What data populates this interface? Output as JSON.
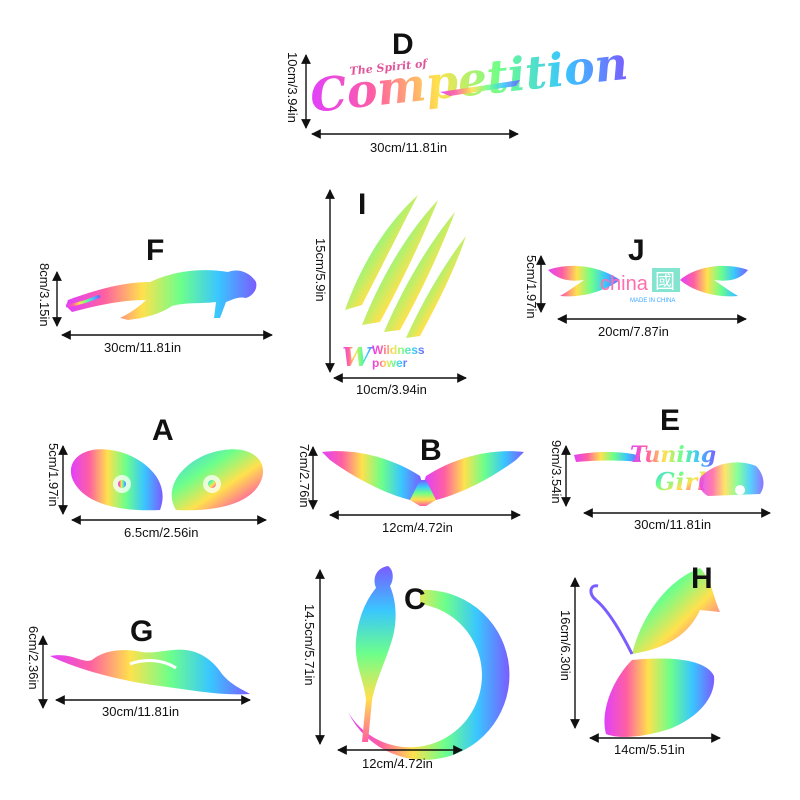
{
  "stickers": {
    "D": {
      "letter": "D",
      "width": "30cm/11.81in",
      "height": "10cm/3.94in",
      "text_main": "Competition",
      "text_small": "The Spirit of"
    },
    "F": {
      "letter": "F",
      "width": "30cm/11.81in",
      "height": "8cm/3.15in"
    },
    "I": {
      "letter": "I",
      "width": "10cm/3.94in",
      "height": "15cm/5.9in",
      "text_top": "Wildness",
      "text_bottom": "power"
    },
    "J": {
      "letter": "J",
      "width": "20cm/7.87in",
      "height": "5cm/1.97in",
      "text_main": "china",
      "text_small": "MADE IN CHINA",
      "glyph": "國"
    },
    "A": {
      "letter": "A",
      "width": "6.5cm/2.56in",
      "height": "5cm/1.97in"
    },
    "B": {
      "letter": "B",
      "width": "12cm/4.72in",
      "height": "7cm/2.76in"
    },
    "E": {
      "letter": "E",
      "width": "30cm/11.81in",
      "height": "9cm/3.54in",
      "text_top": "Tuning",
      "text_bottom": "Girl"
    },
    "G": {
      "letter": "G",
      "width": "30cm/11.81in",
      "height": "6cm/2.36in"
    },
    "C": {
      "letter": "C",
      "width": "12cm/4.72in",
      "height": "14.5cm/5.71in"
    },
    "H": {
      "letter": "H",
      "width": "14cm/5.51in",
      "height": "16cm/6.30in"
    }
  }
}
